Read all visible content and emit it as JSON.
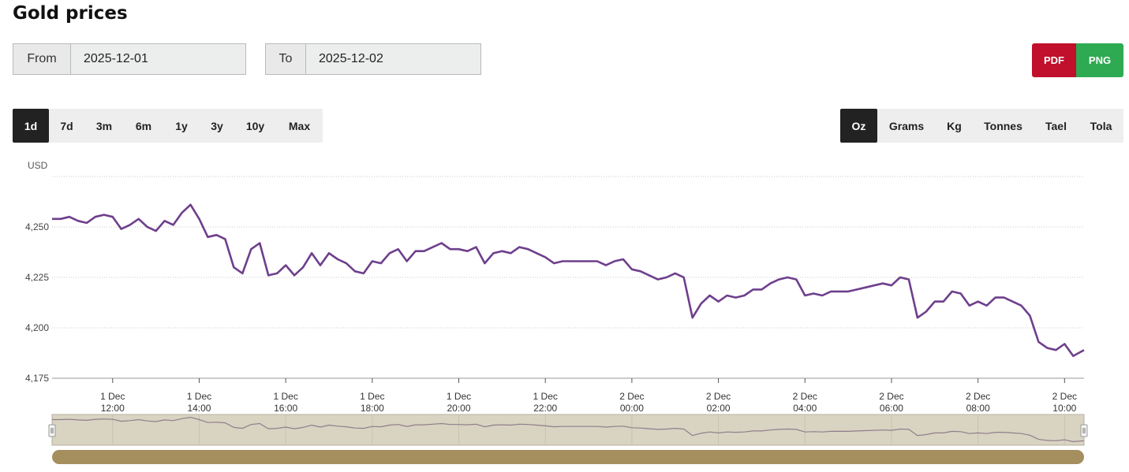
{
  "page": {
    "title": "Gold prices"
  },
  "date_range": {
    "from_label": "From",
    "from_value": "2025-12-01",
    "to_label": "To",
    "to_value": "2025-12-02"
  },
  "export": {
    "pdf_label": "PDF",
    "png_label": "PNG",
    "pdf_color": "#c0102b",
    "png_color": "#2eaa52"
  },
  "ranges": [
    {
      "label": "1d",
      "active": true
    },
    {
      "label": "7d"
    },
    {
      "label": "3m"
    },
    {
      "label": "6m"
    },
    {
      "label": "1y"
    },
    {
      "label": "3y"
    },
    {
      "label": "10y"
    },
    {
      "label": "Max"
    }
  ],
  "units": [
    {
      "label": "Oz",
      "active": true
    },
    {
      "label": "Grams"
    },
    {
      "label": "Kg"
    },
    {
      "label": "Tonnes"
    },
    {
      "label": "Tael"
    },
    {
      "label": "Tola"
    }
  ],
  "chart_data": {
    "type": "line",
    "ylabel": "USD",
    "ylim": [
      4175,
      4275
    ],
    "yticks": [
      4175,
      4200,
      4225,
      4250
    ],
    "ytick_labels": [
      "4,175",
      "4,200",
      "4,225",
      "4,250"
    ],
    "xlim": [
      10.6,
      34.45
    ],
    "xticks": [
      {
        "h": 12,
        "date": "1 Dec",
        "time": "12:00"
      },
      {
        "h": 14,
        "date": "1 Dec",
        "time": "14:00"
      },
      {
        "h": 16,
        "date": "1 Dec",
        "time": "16:00"
      },
      {
        "h": 18,
        "date": "1 Dec",
        "time": "18:00"
      },
      {
        "h": 20,
        "date": "1 Dec",
        "time": "20:00"
      },
      {
        "h": 22,
        "date": "1 Dec",
        "time": "22:00"
      },
      {
        "h": 24,
        "date": "2 Dec",
        "time": "00:00"
      },
      {
        "h": 26,
        "date": "2 Dec",
        "time": "02:00"
      },
      {
        "h": 28,
        "date": "2 Dec",
        "time": "04:00"
      },
      {
        "h": 30,
        "date": "2 Dec",
        "time": "06:00"
      },
      {
        "h": 32,
        "date": "2 Dec",
        "time": "08:00"
      },
      {
        "h": 34,
        "date": "2 Dec",
        "time": "10:00"
      }
    ],
    "grid": true,
    "line_color": "#6e3f8c",
    "navigator_fill": "#d9d3c2",
    "scrollbar_color": "#a58f5f",
    "series": [
      {
        "x": [
          10.6,
          10.8,
          11.0,
          11.2,
          11.4,
          11.6,
          11.8,
          12.0,
          12.2,
          12.4,
          12.6,
          12.8,
          13.0,
          13.2,
          13.4,
          13.6,
          13.8,
          14.0,
          14.2,
          14.4,
          14.6,
          14.8,
          15.0,
          15.2,
          15.4,
          15.6,
          15.8,
          16.0,
          16.2,
          16.4,
          16.6,
          16.8,
          17.0,
          17.2,
          17.4,
          17.6,
          17.8,
          18.0,
          18.2,
          18.4,
          18.6,
          18.8,
          19.0,
          19.2,
          19.4,
          19.6,
          19.8,
          20.0,
          20.2,
          20.4,
          20.6,
          20.8,
          21.0,
          21.2,
          21.4,
          21.6,
          21.8,
          22.0,
          22.2,
          22.4,
          22.6,
          22.8,
          23.0,
          23.2,
          23.4,
          23.6,
          23.8,
          24.0,
          24.2,
          24.4,
          24.6,
          24.8,
          25.0,
          25.2,
          25.4,
          25.6,
          25.8,
          26.0,
          26.2,
          26.4,
          26.6,
          26.8,
          27.0,
          27.2,
          27.4,
          27.6,
          27.8,
          28.0,
          28.2,
          28.4,
          28.6,
          28.8,
          29.0,
          29.2,
          29.4,
          29.6,
          29.8,
          30.0,
          30.2,
          30.4,
          30.6,
          30.8,
          31.0,
          31.2,
          31.4,
          31.6,
          31.8,
          32.0,
          32.2,
          32.4,
          32.6,
          32.8,
          33.0,
          33.2,
          33.4,
          33.6,
          33.8,
          34.0,
          34.2,
          34.45
        ],
        "y": [
          4254,
          4254,
          4255,
          4253,
          4252,
          4255,
          4256,
          4255,
          4249,
          4251,
          4254,
          4250,
          4248,
          4253,
          4251,
          4257,
          4261,
          4254,
          4245,
          4246,
          4244,
          4230,
          4227,
          4239,
          4242,
          4226,
          4227,
          4231,
          4226,
          4230,
          4237,
          4231,
          4237,
          4234,
          4232,
          4228,
          4227,
          4233,
          4232,
          4237,
          4239,
          4233,
          4238,
          4238,
          4240,
          4242,
          4239,
          4239,
          4238,
          4240,
          4232,
          4237,
          4238,
          4237,
          4240,
          4239,
          4237,
          4235,
          4232,
          4233,
          4233,
          4233,
          4233,
          4233,
          4231,
          4233,
          4234,
          4229,
          4228,
          4226,
          4224,
          4225,
          4227,
          4225,
          4205,
          4212,
          4216,
          4213,
          4216,
          4215,
          4216,
          4219,
          4219,
          4222,
          4224,
          4225,
          4224,
          4216,
          4217,
          4216,
          4218,
          4218,
          4218,
          4219,
          4220,
          4221,
          4222,
          4221,
          4225,
          4224,
          4205,
          4208,
          4213,
          4213,
          4218,
          4217,
          4211,
          4213,
          4211,
          4215,
          4215,
          4213,
          4211,
          4206,
          4193,
          4190,
          4189,
          4192,
          4186,
          4189
        ]
      }
    ]
  }
}
